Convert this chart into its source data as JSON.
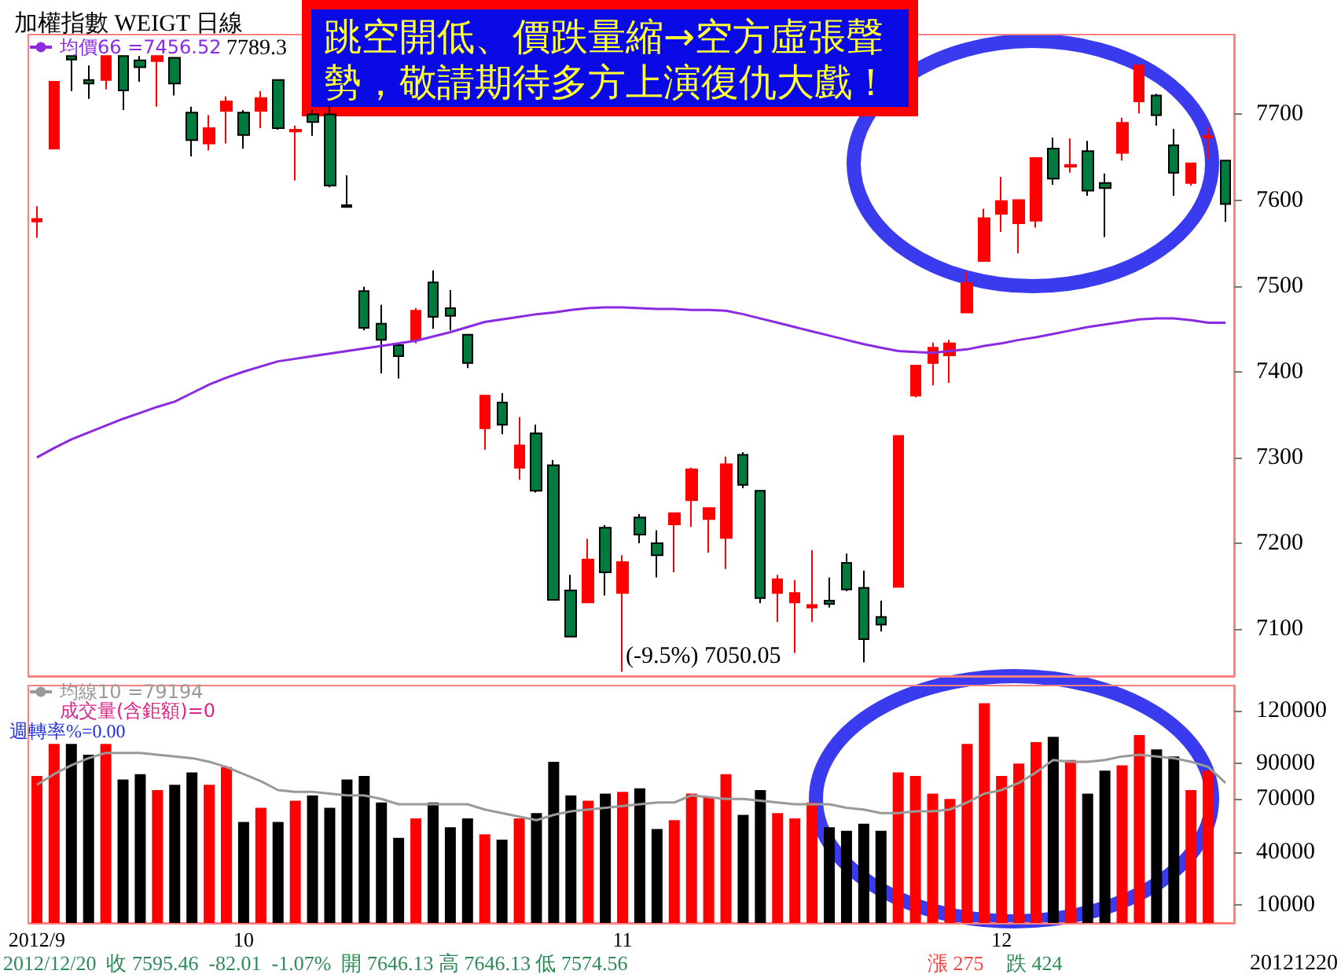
{
  "chart_data": [
    {
      "type": "candlestick",
      "title": "加權指數 WEIGT 日線",
      "categories": [
        null,
        null,
        null,
        null,
        null,
        null,
        null,
        null,
        null,
        null,
        null,
        null,
        null,
        null,
        null,
        null,
        null,
        null,
        null,
        null,
        null,
        null,
        null,
        null,
        null,
        null,
        null,
        null,
        null,
        null,
        null,
        null,
        null,
        null,
        null,
        null,
        null,
        null,
        null,
        null,
        null,
        null,
        null,
        null,
        null,
        null,
        null,
        null,
        null,
        null,
        null,
        null,
        null,
        null,
        null,
        null,
        null,
        null,
        null,
        null,
        null,
        null,
        null,
        null,
        null,
        null,
        null,
        null,
        null,
        null
      ],
      "ohlc": [
        [
          7575,
          7593,
          7556,
          7578
        ],
        [
          7660,
          7738,
          7660,
          7738
        ],
        [
          7768,
          7768,
          7727,
          7764
        ],
        [
          7740,
          7757,
          7718,
          7736
        ],
        [
          7740,
          7768,
          7729,
          7768
        ],
        [
          7768,
          7768,
          7705,
          7728
        ],
        [
          7763,
          7768,
          7738,
          7755
        ],
        [
          7762,
          7768,
          7709,
          7768
        ],
        [
          7766,
          7766,
          7722,
          7736
        ],
        [
          7702,
          7709,
          7651,
          7670
        ],
        [
          7666,
          7699,
          7658,
          7684
        ],
        [
          7704,
          7721,
          7666,
          7715
        ],
        [
          7702,
          7705,
          7660,
          7676
        ],
        [
          7704,
          7727,
          7684,
          7719
        ],
        [
          7740,
          7740,
          7682,
          7684
        ],
        [
          7680,
          7687,
          7623,
          7682
        ],
        [
          7700,
          7705,
          7675,
          7691
        ],
        [
          7700,
          7710,
          7615,
          7617
        ],
        [
          7594,
          7629,
          7592,
          7592
        ],
        [
          7494,
          7499,
          7448,
          7451
        ],
        [
          7456,
          7478,
          7398,
          7437
        ],
        [
          7431,
          7431,
          7392,
          7418
        ],
        [
          7437,
          7474,
          7433,
          7471
        ],
        [
          7504,
          7518,
          7450,
          7464
        ],
        [
          7474,
          7495,
          7448,
          7465
        ],
        [
          7443,
          7443,
          7404,
          7410
        ],
        [
          7334,
          7372,
          7309,
          7372
        ],
        [
          7364,
          7375,
          7327,
          7338
        ],
        [
          7288,
          7347,
          7274,
          7314
        ],
        [
          7328,
          7338,
          7259,
          7261
        ],
        [
          7291,
          7297,
          7133,
          7134
        ],
        [
          7145,
          7163,
          7091,
          7091
        ],
        [
          7131,
          7205,
          7131,
          7181
        ],
        [
          7218,
          7221,
          7139,
          7166
        ],
        [
          7142,
          7186,
          7050.05,
          7178
        ],
        [
          7230,
          7234,
          7200,
          7210
        ],
        [
          7200,
          7215,
          7160,
          7186
        ],
        [
          7222,
          7235,
          7166,
          7235
        ],
        [
          7250,
          7288,
          7219,
          7286
        ],
        [
          7228,
          7241,
          7189,
          7241
        ],
        [
          7206,
          7301,
          7170,
          7292
        ],
        [
          7303,
          7306,
          7264,
          7268
        ],
        [
          7261,
          7261,
          7130,
          7136
        ],
        [
          7142,
          7163,
          7108,
          7158
        ],
        [
          7131,
          7157,
          7072,
          7142
        ],
        [
          7125,
          7192,
          7108,
          7128
        ],
        [
          7133,
          7160,
          7125,
          7129
        ],
        [
          7177,
          7188,
          7144,
          7146
        ],
        [
          7148,
          7168,
          7061,
          7088
        ],
        [
          7114,
          7133,
          7097,
          7105
        ],
        [
          7149,
          7325,
          7149,
          7325
        ],
        [
          7372,
          7407,
          7370,
          7407
        ],
        [
          7410,
          7434,
          7384,
          7428
        ],
        [
          7419,
          7437,
          7387,
          7433
        ],
        [
          7469,
          7517,
          7469,
          7503
        ],
        [
          7529,
          7590,
          7529,
          7579
        ],
        [
          7584,
          7627,
          7563,
          7599
        ],
        [
          7573,
          7600,
          7538,
          7600
        ],
        [
          7576,
          7649,
          7568,
          7649
        ],
        [
          7660,
          7673,
          7618,
          7625
        ],
        [
          7639,
          7672,
          7632,
          7641
        ],
        [
          7657,
          7669,
          7605,
          7611
        ],
        [
          7620,
          7631,
          7557,
          7614
        ],
        [
          7655,
          7696,
          7646,
          7690
        ],
        [
          7715,
          7757,
          7701,
          7757
        ],
        [
          7722,
          7724,
          7687,
          7699
        ],
        [
          7664,
          7683,
          7605,
          7632
        ],
        [
          7620,
          7643,
          7617,
          7643
        ],
        [
          7673,
          7685,
          7648,
          7675
        ],
        [
          7646.13,
          7646.13,
          7574.56,
          7595.46
        ]
      ],
      "colors": [
        "#ff0000",
        "#ff0000",
        "#007a3d",
        "#007a3d",
        "#ff0000",
        "#007a3d",
        "#007a3d",
        "#ff0000",
        "#007a3d",
        "#007a3d",
        "#ff0000",
        "#ff0000",
        "#007a3d",
        "#ff0000",
        "#007a3d",
        "#ff0000",
        "#007a3d",
        "#007a3d",
        "#000000",
        "#007a3d",
        "#007a3d",
        "#007a3d",
        "#ff0000",
        "#007a3d",
        "#007a3d",
        "#007a3d",
        "#ff0000",
        "#007a3d",
        "#ff0000",
        "#007a3d",
        "#007a3d",
        "#007a3d",
        "#ff0000",
        "#007a3d",
        "#ff0000",
        "#007a3d",
        "#007a3d",
        "#ff0000",
        "#ff0000",
        "#ff0000",
        "#ff0000",
        "#007a3d",
        "#007a3d",
        "#ff0000",
        "#ff0000",
        "#ff0000",
        "#007a3d",
        "#007a3d",
        "#007a3d",
        "#007a3d",
        "#ff0000",
        "#ff0000",
        "#ff0000",
        "#ff0000",
        "#ff0000",
        "#ff0000",
        "#ff0000",
        "#ff0000",
        "#ff0000",
        "#007a3d",
        "#ff0000",
        "#007a3d",
        "#007a3d",
        "#ff0000",
        "#ff0000",
        "#007a3d",
        "#007a3d",
        "#ff0000",
        "#ff0000",
        "#007a3d"
      ],
      "series": [
        {
          "name": "均價66 =7456.52",
          "type": "line",
          "color": "#8a2be2",
          "values": [
            7300,
            7311,
            7321,
            7329,
            7337,
            7345,
            7352,
            7359,
            7365,
            7375,
            7385,
            7393,
            7400,
            7406,
            7412,
            7415,
            7418,
            7421,
            7424,
            7427,
            7430,
            7433,
            7436,
            7441,
            7446,
            7452,
            7458,
            7461,
            7464,
            7467,
            7469,
            7472,
            7474,
            7475,
            7475,
            7474,
            7473,
            7473,
            7472,
            7472,
            7471,
            7467,
            7462,
            7457,
            7452,
            7447,
            7442,
            7437,
            7432,
            7428,
            7424,
            7423,
            7422,
            7424,
            7426,
            7430,
            7433,
            7437,
            7440,
            7444,
            7448,
            7452,
            7455,
            7458,
            7461,
            7462,
            7462,
            7460,
            7457,
            7457
          ]
        }
      ],
      "ylim": [
        7045,
        7793
      ],
      "yticks": [
        7100,
        7200,
        7300,
        7400,
        7500,
        7600,
        7700
      ],
      "tick_labels": "y",
      "legend": "top left",
      "marker": "none",
      "line_style": "solid",
      "annotations": [
        "跳空開低、價跌量縮→空方虛張聲勢，敬請期待多方上演復仇大戲！",
        "(-9.5%) 7050.05",
        "7789.3"
      ]
    },
    {
      "type": "bar",
      "categories": [
        "2012/9",
        null,
        null,
        null,
        null,
        null,
        null,
        null,
        null,
        null,
        null,
        null,
        "10",
        null,
        null,
        null,
        null,
        null,
        null,
        null,
        null,
        null,
        null,
        null,
        null,
        null,
        null,
        null,
        null,
        null,
        null,
        null,
        null,
        null,
        "11",
        null,
        null,
        null,
        null,
        null,
        null,
        null,
        null,
        null,
        null,
        null,
        null,
        null,
        null,
        null,
        null,
        null,
        null,
        null,
        null,
        null,
        "12",
        null,
        null,
        null,
        null,
        null,
        null,
        null,
        null,
        null,
        null,
        null,
        null,
        null
      ],
      "series": [
        {
          "name": "均線10 =79194",
          "type": "line",
          "color": "#999999",
          "values": [
            78000,
            84000,
            89000,
            93000,
            96000,
            96000,
            96000,
            95000,
            94000,
            93000,
            91000,
            88000,
            84000,
            80000,
            75000,
            74000,
            74000,
            73000,
            72000,
            72000,
            70000,
            67000,
            67000,
            67000,
            67000,
            67000,
            64000,
            62000,
            60000,
            58000,
            61000,
            63000,
            64000,
            65000,
            66000,
            67000,
            68000,
            68000,
            72000,
            71000,
            70000,
            70000,
            69000,
            68000,
            67000,
            67000,
            67000,
            65000,
            64000,
            62000,
            62000,
            63000,
            63000,
            64000,
            68000,
            73000,
            75000,
            79000,
            85000,
            92000,
            91000,
            91000,
            92000,
            94000,
            95000,
            94000,
            93000,
            91000,
            88000,
            79000
          ]
        },
        {
          "name": "成交量(含鉅額)=0",
          "type": "bar",
          "color": "#dd2288",
          "values": [
            83000,
            101000,
            101000,
            95000,
            101000,
            81000,
            84000,
            75000,
            78000,
            85000,
            78000,
            88000,
            57000,
            65000,
            57000,
            69000,
            72000,
            65000,
            81000,
            83000,
            68000,
            48000,
            59000,
            68000,
            54000,
            59000,
            50000,
            47000,
            59000,
            62000,
            91000,
            72000,
            69000,
            73000,
            74000,
            76000,
            53000,
            58000,
            73000,
            71000,
            84000,
            61000,
            75000,
            62000,
            59000,
            68000,
            54000,
            52000,
            56000,
            52000,
            85000,
            83000,
            73000,
            70000,
            101000,
            124000,
            83000,
            90000,
            102000,
            105000,
            92000,
            73000,
            86000,
            89000,
            106000,
            98000,
            94000,
            75000,
            86000,
            0
          ],
          "colors": [
            "#ff0000",
            "#ff0000",
            "#000000",
            "#000000",
            "#ff0000",
            "#000000",
            "#000000",
            "#ff0000",
            "#000000",
            "#000000",
            "#ff0000",
            "#ff0000",
            "#000000",
            "#ff0000",
            "#000000",
            "#ff0000",
            "#000000",
            "#000000",
            "#000000",
            "#000000",
            "#000000",
            "#000000",
            "#ff0000",
            "#000000",
            "#000000",
            "#000000",
            "#ff0000",
            "#000000",
            "#ff0000",
            "#000000",
            "#000000",
            "#000000",
            "#ff0000",
            "#000000",
            "#ff0000",
            "#000000",
            "#000000",
            "#ff0000",
            "#ff0000",
            "#ff0000",
            "#ff0000",
            "#000000",
            "#000000",
            "#ff0000",
            "#ff0000",
            "#ff0000",
            "#000000",
            "#000000",
            "#000000",
            "#000000",
            "#ff0000",
            "#ff0000",
            "#ff0000",
            "#ff0000",
            "#ff0000",
            "#ff0000",
            "#ff0000",
            "#ff0000",
            "#ff0000",
            "#000000",
            "#ff0000",
            "#000000",
            "#000000",
            "#ff0000",
            "#ff0000",
            "#000000",
            "#000000",
            "#ff0000",
            "#ff0000",
            "#000000"
          ]
        }
      ],
      "ylim": [
        0,
        134000
      ],
      "yticks": [
        10000,
        40000,
        70000,
        90000,
        120000
      ],
      "legend": "top left",
      "marker": "none",
      "line_style": "solid",
      "annotations": [
        "週轉率%=0.00",
        "2012/12/20  收 7595.46  -82.01  -1.07%  開 7646.13 高 7646.13 低 7574.56",
        "漲 275",
        "跌 424",
        "20121220"
      ]
    }
  ]
}
